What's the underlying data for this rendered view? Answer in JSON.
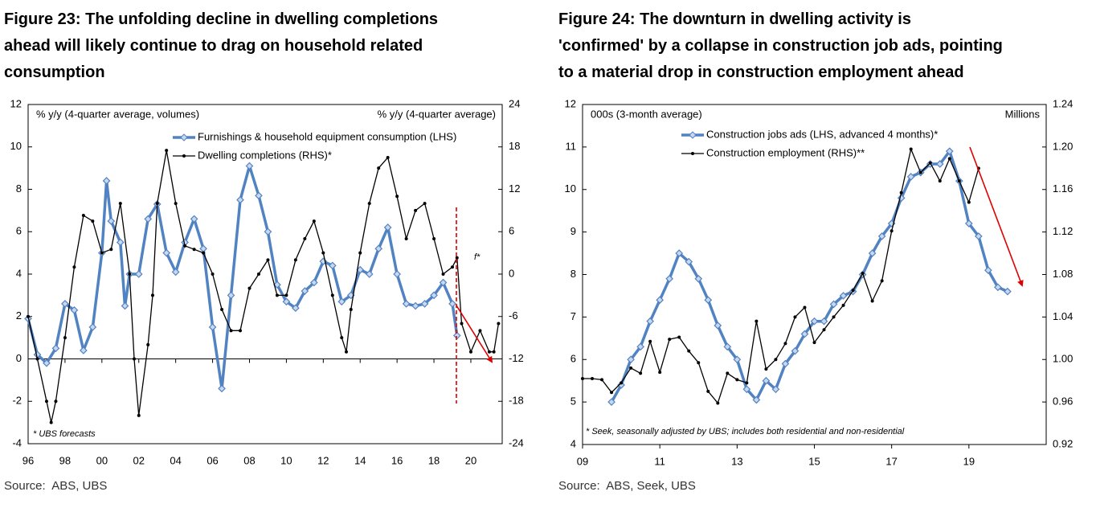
{
  "chart_data": [
    {
      "type": "line",
      "title": [
        "Figure 23: The unfolding decline in dwelling completions",
        "ahead will likely continue to drag on household related",
        "consumption"
      ],
      "ylabel": "% y/y (4-quarter average, volumes)",
      "y2label": "% y/y (4-quarter average)",
      "xlim": [
        1996,
        2021.7
      ],
      "xticks": [
        {
          "value": 1996,
          "label": "96"
        },
        {
          "value": 1998,
          "label": "98"
        },
        {
          "value": 2000,
          "label": "00"
        },
        {
          "value": 2002,
          "label": "02"
        },
        {
          "value": 2004,
          "label": "04"
        },
        {
          "value": 2006,
          "label": "06"
        },
        {
          "value": 2008,
          "label": "08"
        },
        {
          "value": 2010,
          "label": "10"
        },
        {
          "value": 2012,
          "label": "12"
        },
        {
          "value": 2014,
          "label": "14"
        },
        {
          "value": 2016,
          "label": "16"
        },
        {
          "value": 2018,
          "label": "18"
        },
        {
          "value": 2020,
          "label": "20"
        }
      ],
      "ylim": [
        -4,
        12
      ],
      "yticks": [
        -4,
        -2,
        0,
        2,
        4,
        6,
        8,
        10,
        12
      ],
      "y2lim": [
        -24,
        24
      ],
      "y2ticks": [
        -24,
        -18,
        -12,
        -6,
        0,
        6,
        12,
        18,
        24
      ],
      "series": [
        {
          "name": "Furnishings & household equipment consumption (LHS)",
          "color": "#5183c3",
          "marker": "diamond",
          "x": [
            1996,
            1996.5,
            1997,
            1997.5,
            1998,
            1998.5,
            1999,
            1999.5,
            2000,
            2000.25,
            2000.5,
            2001,
            2001.25,
            2001.5,
            2002,
            2002.5,
            2003,
            2003.5,
            2004,
            2004.5,
            2005,
            2005.5,
            2006,
            2006.5,
            2007,
            2007.5,
            2008,
            2008.5,
            2009,
            2009.5,
            2010,
            2010.5,
            2011,
            2011.5,
            2012,
            2012.5,
            2013,
            2013.5,
            2014,
            2014.5,
            2015,
            2015.5,
            2016,
            2016.5,
            2017,
            2017.5,
            2018,
            2018.5,
            2019,
            2019.25
          ],
          "values": [
            1.9,
            0.2,
            -0.2,
            0.5,
            2.6,
            2.3,
            0.4,
            1.5,
            5.0,
            8.4,
            6.5,
            5.5,
            2.5,
            4.0,
            4.0,
            6.6,
            7.3,
            5.0,
            4.1,
            5.5,
            6.6,
            5.2,
            1.5,
            -1.4,
            3.0,
            7.5,
            9.1,
            7.7,
            6.0,
            3.5,
            2.7,
            2.4,
            3.2,
            3.6,
            4.6,
            4.4,
            2.7,
            3.0,
            4.2,
            4.0,
            5.2,
            6.2,
            4.0,
            2.6,
            2.5,
            2.6,
            3.0,
            3.6,
            2.6,
            1.1
          ]
        },
        {
          "name": "Dwelling completions (RHS)*",
          "color": "#000000",
          "marker": "circle",
          "axis": "y2",
          "x": [
            1996,
            1996.5,
            1997,
            1997.25,
            1997.5,
            1998,
            1998.5,
            1999,
            1999.5,
            2000,
            2000.5,
            2001,
            2001.5,
            2001.75,
            2002,
            2002.5,
            2002.75,
            2003,
            2003.5,
            2004,
            2004.5,
            2005,
            2005.5,
            2006,
            2006.5,
            2007,
            2007.5,
            2008,
            2008.5,
            2009,
            2009.5,
            2010,
            2010.5,
            2011,
            2011.5,
            2012,
            2012.5,
            2013,
            2013.25,
            2013.5,
            2014,
            2014.5,
            2015,
            2015.5,
            2016,
            2016.5,
            2017,
            2017.5,
            2018,
            2018.5,
            2019,
            2019.25,
            2019.5,
            2020,
            2020.5,
            2021,
            2021.25,
            2021.5
          ],
          "values": [
            -6,
            -12,
            -18,
            -21,
            -18,
            -9,
            1,
            8.3,
            7.5,
            3,
            3.5,
            10,
            0,
            -12,
            -20,
            -10,
            -3,
            10,
            17.5,
            10,
            4,
            3.5,
            3,
            0,
            -5,
            -8,
            -8,
            -2,
            0,
            2,
            -3,
            -3,
            2,
            5,
            7.5,
            3,
            -3,
            -9,
            -11,
            -5,
            3,
            10,
            15,
            16.5,
            11,
            5,
            9,
            10,
            5,
            0,
            1,
            2.3,
            -7,
            -11,
            -8,
            -11,
            -11,
            -7
          ]
        }
      ],
      "annotations": [
        "f*",
        "* UBS forecasts"
      ],
      "source": "Source:  ABS, UBS"
    },
    {
      "type": "line",
      "title": [
        "Figure 24: The downturn in dwelling activity is",
        "'confirmed' by a collapse in construction job ads, pointing",
        "to a material drop in construction employment ahead"
      ],
      "ylabel": "000s (3-month average)",
      "y2label": "Millions",
      "xlim": [
        2009,
        2021
      ],
      "xticks": [
        {
          "value": 2009,
          "label": "09"
        },
        {
          "value": 2011,
          "label": "11"
        },
        {
          "value": 2013,
          "label": "13"
        },
        {
          "value": 2015,
          "label": "15"
        },
        {
          "value": 2017,
          "label": "17"
        },
        {
          "value": 2019,
          "label": "19"
        }
      ],
      "ylim": [
        4,
        12
      ],
      "yticks": [
        4,
        5,
        6,
        7,
        8,
        9,
        10,
        11,
        12
      ],
      "y2lim": [
        0.92,
        1.24
      ],
      "y2ticks": [
        0.92,
        0.96,
        {
          "value": 1.0,
          "label": "1.00"
        },
        1.04,
        1.08,
        1.12,
        1.16,
        {
          "value": 1.2,
          "label": "1.20"
        },
        1.24
      ],
      "series": [
        {
          "name": "Construction jobs ads (LHS, advanced 4 months)*",
          "color": "#5183c3",
          "marker": "diamond",
          "x": [
            2009.75,
            2010,
            2010.25,
            2010.5,
            2010.75,
            2011,
            2011.25,
            2011.5,
            2011.75,
            2012,
            2012.25,
            2012.5,
            2012.75,
            2013,
            2013.25,
            2013.5,
            2013.75,
            2014,
            2014.25,
            2014.5,
            2014.75,
            2015,
            2015.25,
            2015.5,
            2015.75,
            2016,
            2016.25,
            2016.5,
            2016.75,
            2017,
            2017.25,
            2017.5,
            2017.75,
            2018,
            2018.25,
            2018.5,
            2018.75,
            2019,
            2019.25,
            2019.5,
            2019.75,
            2020
          ],
          "values": [
            5.0,
            5.4,
            6.0,
            6.3,
            6.9,
            7.4,
            7.9,
            8.5,
            8.3,
            7.9,
            7.4,
            6.8,
            6.3,
            6.0,
            5.3,
            5.05,
            5.5,
            5.3,
            5.9,
            6.2,
            6.6,
            6.9,
            6.9,
            7.3,
            7.5,
            7.6,
            8.0,
            8.5,
            8.9,
            9.2,
            9.8,
            10.3,
            10.4,
            10.6,
            10.6,
            10.9,
            10.2,
            9.2,
            8.9,
            8.1,
            7.7,
            7.6
          ]
        },
        {
          "name": "Construction employment (RHS)**",
          "color": "#000000",
          "marker": "circle",
          "axis": "y2",
          "x": [
            2009,
            2009.25,
            2009.5,
            2009.75,
            2010,
            2010.25,
            2010.5,
            2010.75,
            2011,
            2011.25,
            2011.5,
            2011.75,
            2012,
            2012.25,
            2012.5,
            2012.75,
            2013,
            2013.25,
            2013.5,
            2013.75,
            2014,
            2014.25,
            2014.5,
            2014.75,
            2015,
            2015.25,
            2015.5,
            2015.75,
            2016,
            2016.25,
            2016.5,
            2016.75,
            2017,
            2017.25,
            2017.5,
            2017.75,
            2018,
            2018.25,
            2018.5,
            2018.75,
            2019,
            2019.25
          ],
          "values": [
            0.982,
            0.982,
            0.981,
            0.969,
            0.978,
            0.992,
            0.987,
            1.017,
            0.988,
            1.019,
            1.021,
            1.008,
            0.997,
            0.97,
            0.959,
            0.987,
            0.981,
            0.978,
            1.036,
            0.991,
            1.0,
            1.015,
            1.04,
            1.049,
            1.016,
            1.028,
            1.04,
            1.051,
            1.065,
            1.081,
            1.055,
            1.074,
            1.121,
            1.157,
            1.198,
            1.176,
            1.185,
            1.168,
            1.189,
            1.168,
            1.148,
            1.18
          ]
        }
      ],
      "annotations": [
        "* Seek, seasonally adjusted by UBS; includes both residential and non-residential"
      ],
      "source": "Source:  ABS, Seek, UBS"
    }
  ]
}
